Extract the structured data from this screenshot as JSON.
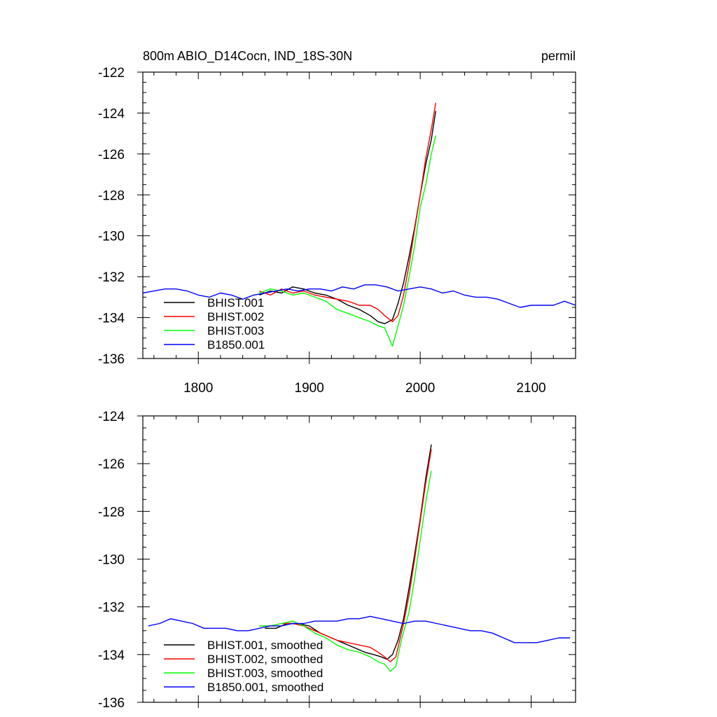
{
  "header": {
    "title": "800m ABIO_D14Cocn, IND_18S-30N",
    "units": "permil"
  },
  "colors": {
    "BHIST.001": "#000000",
    "BHIST.002": "#ff0000",
    "BHIST.003": "#00ff00",
    "B1850.001": "#0000ff"
  },
  "chart_data": [
    {
      "type": "line",
      "xlim": [
        1750,
        2140
      ],
      "ylim": [
        -136,
        -122
      ],
      "x_ticks": [
        1800,
        1900,
        2000,
        2100
      ],
      "x_tick_labels": [
        "1800",
        "1900",
        "2000",
        "2100"
      ],
      "y_ticks": [
        -122,
        -124,
        -126,
        -128,
        -130,
        -132,
        -134,
        -136
      ],
      "y_tick_labels": [
        "-122",
        "-124",
        "-126",
        "-128",
        "-130",
        "-132",
        "-134",
        "-136"
      ],
      "legend_position": "lower-left",
      "series": [
        {
          "name": "BHIST.001",
          "color": "#000000",
          "x": [
            1855,
            1865,
            1875,
            1885,
            1895,
            1905,
            1915,
            1925,
            1935,
            1945,
            1955,
            1962,
            1968,
            1975,
            1980,
            1985,
            1990,
            1995,
            2000,
            2005,
            2010,
            2014
          ],
          "y": [
            -132.9,
            -132.7,
            -132.8,
            -132.5,
            -132.6,
            -132.8,
            -132.9,
            -133.1,
            -133.4,
            -133.6,
            -133.9,
            -134.2,
            -134.3,
            -134.1,
            -133.3,
            -132.3,
            -131.0,
            -129.6,
            -128.0,
            -126.5,
            -125.3,
            -123.9
          ]
        },
        {
          "name": "BHIST.002",
          "color": "#ff0000",
          "x": [
            1855,
            1865,
            1875,
            1885,
            1895,
            1905,
            1915,
            1925,
            1935,
            1945,
            1955,
            1962,
            1968,
            1975,
            1980,
            1985,
            1990,
            1995,
            2000,
            2005,
            2010,
            2014
          ],
          "y": [
            -132.7,
            -132.9,
            -132.6,
            -132.8,
            -132.7,
            -132.9,
            -133.0,
            -133.1,
            -133.2,
            -133.4,
            -133.4,
            -133.6,
            -133.9,
            -134.2,
            -133.9,
            -132.9,
            -131.4,
            -129.7,
            -128.0,
            -126.2,
            -124.8,
            -123.5
          ]
        },
        {
          "name": "BHIST.003",
          "color": "#00ff00",
          "x": [
            1855,
            1865,
            1875,
            1885,
            1895,
            1905,
            1915,
            1925,
            1935,
            1945,
            1955,
            1962,
            1968,
            1975,
            1980,
            1985,
            1990,
            1995,
            2000,
            2005,
            2010,
            2014
          ],
          "y": [
            -132.8,
            -132.6,
            -132.7,
            -132.9,
            -132.8,
            -133.0,
            -133.2,
            -133.6,
            -133.8,
            -134.0,
            -134.2,
            -134.4,
            -134.5,
            -135.4,
            -134.4,
            -133.4,
            -132.0,
            -130.5,
            -128.6,
            -127.5,
            -126.0,
            -125.1
          ]
        },
        {
          "name": "B1850.001",
          "color": "#0000ff",
          "x": [
            1750,
            1760,
            1770,
            1780,
            1790,
            1800,
            1810,
            1820,
            1830,
            1840,
            1850,
            1860,
            1870,
            1880,
            1890,
            1900,
            1910,
            1920,
            1930,
            1940,
            1950,
            1960,
            1970,
            1980,
            1990,
            2000,
            2010,
            2020,
            2030,
            2040,
            2050,
            2060,
            2070,
            2080,
            2090,
            2100,
            2110,
            2120,
            2130,
            2140
          ],
          "y": [
            -132.8,
            -132.7,
            -132.6,
            -132.6,
            -132.7,
            -132.9,
            -133.0,
            -132.8,
            -132.9,
            -133.1,
            -132.9,
            -132.8,
            -132.7,
            -132.6,
            -132.7,
            -132.6,
            -132.6,
            -132.7,
            -132.5,
            -132.6,
            -132.4,
            -132.4,
            -132.5,
            -132.7,
            -132.6,
            -132.5,
            -132.6,
            -132.8,
            -132.7,
            -132.9,
            -133.0,
            -133.0,
            -133.1,
            -133.3,
            -133.5,
            -133.4,
            -133.4,
            -133.4,
            -133.2,
            -133.4
          ]
        }
      ]
    },
    {
      "type": "line",
      "xlim": [
        1750,
        2140
      ],
      "ylim": [
        -136,
        -124
      ],
      "x_ticks": [
        1800,
        1900,
        2000,
        2100
      ],
      "y_ticks": [
        -124,
        -126,
        -128,
        -130,
        -132,
        -134,
        -136
      ],
      "y_tick_labels": [
        "-124",
        "-126",
        "-128",
        "-130",
        "-132",
        "-134",
        "-136"
      ],
      "legend_position": "lower-left",
      "series": [
        {
          "name": "BHIST.001, smoothed",
          "color": "#000000",
          "x": [
            1860,
            1870,
            1880,
            1890,
            1900,
            1910,
            1920,
            1930,
            1940,
            1950,
            1958,
            1965,
            1970,
            1975,
            1980,
            1985,
            1990,
            1995,
            2000,
            2005,
            2010
          ],
          "y": [
            -132.9,
            -132.9,
            -132.7,
            -132.7,
            -132.8,
            -133.1,
            -133.3,
            -133.5,
            -133.7,
            -133.9,
            -134.0,
            -134.1,
            -134.2,
            -134.0,
            -133.4,
            -132.5,
            -131.2,
            -129.8,
            -128.3,
            -126.6,
            -125.2
          ]
        },
        {
          "name": "BHIST.002, smoothed",
          "color": "#ff0000",
          "x": [
            1855,
            1865,
            1875,
            1885,
            1895,
            1905,
            1915,
            1925,
            1935,
            1945,
            1955,
            1962,
            1968,
            1973,
            1978,
            1985,
            1990,
            1995,
            2000,
            2005,
            2010
          ],
          "y": [
            -132.8,
            -132.8,
            -132.7,
            -132.7,
            -132.8,
            -133.0,
            -133.2,
            -133.4,
            -133.5,
            -133.6,
            -133.7,
            -133.9,
            -134.1,
            -134.3,
            -134.1,
            -132.7,
            -131.5,
            -130.0,
            -128.4,
            -126.8,
            -125.4
          ]
        },
        {
          "name": "BHIST.003, smoothed",
          "color": "#00ff00",
          "x": [
            1855,
            1865,
            1875,
            1885,
            1895,
            1905,
            1915,
            1925,
            1935,
            1945,
            1955,
            1962,
            1968,
            1973,
            1978,
            1983,
            1990,
            1995,
            2000,
            2005,
            2010
          ],
          "y": [
            -132.8,
            -132.8,
            -132.7,
            -132.6,
            -132.8,
            -133.1,
            -133.3,
            -133.6,
            -133.8,
            -133.9,
            -134.1,
            -134.3,
            -134.4,
            -134.7,
            -134.5,
            -133.4,
            -132.2,
            -130.8,
            -129.2,
            -127.6,
            -126.3
          ]
        },
        {
          "name": "B1850.001, smoothed",
          "color": "#0000ff",
          "x": [
            1755,
            1765,
            1775,
            1785,
            1795,
            1805,
            1815,
            1825,
            1835,
            1845,
            1855,
            1865,
            1875,
            1885,
            1895,
            1905,
            1915,
            1925,
            1935,
            1945,
            1955,
            1965,
            1975,
            1985,
            1995,
            2005,
            2015,
            2025,
            2035,
            2045,
            2055,
            2065,
            2075,
            2085,
            2095,
            2105,
            2115,
            2125,
            2135
          ],
          "y": [
            -132.8,
            -132.7,
            -132.5,
            -132.6,
            -132.7,
            -132.9,
            -132.9,
            -132.9,
            -133.0,
            -133.0,
            -132.9,
            -132.8,
            -132.8,
            -132.7,
            -132.7,
            -132.6,
            -132.6,
            -132.6,
            -132.5,
            -132.5,
            -132.4,
            -132.5,
            -132.6,
            -132.7,
            -132.6,
            -132.6,
            -132.7,
            -132.8,
            -132.9,
            -133.0,
            -133.0,
            -133.1,
            -133.3,
            -133.5,
            -133.5,
            -133.5,
            -133.4,
            -133.3,
            -133.3
          ]
        }
      ]
    }
  ]
}
